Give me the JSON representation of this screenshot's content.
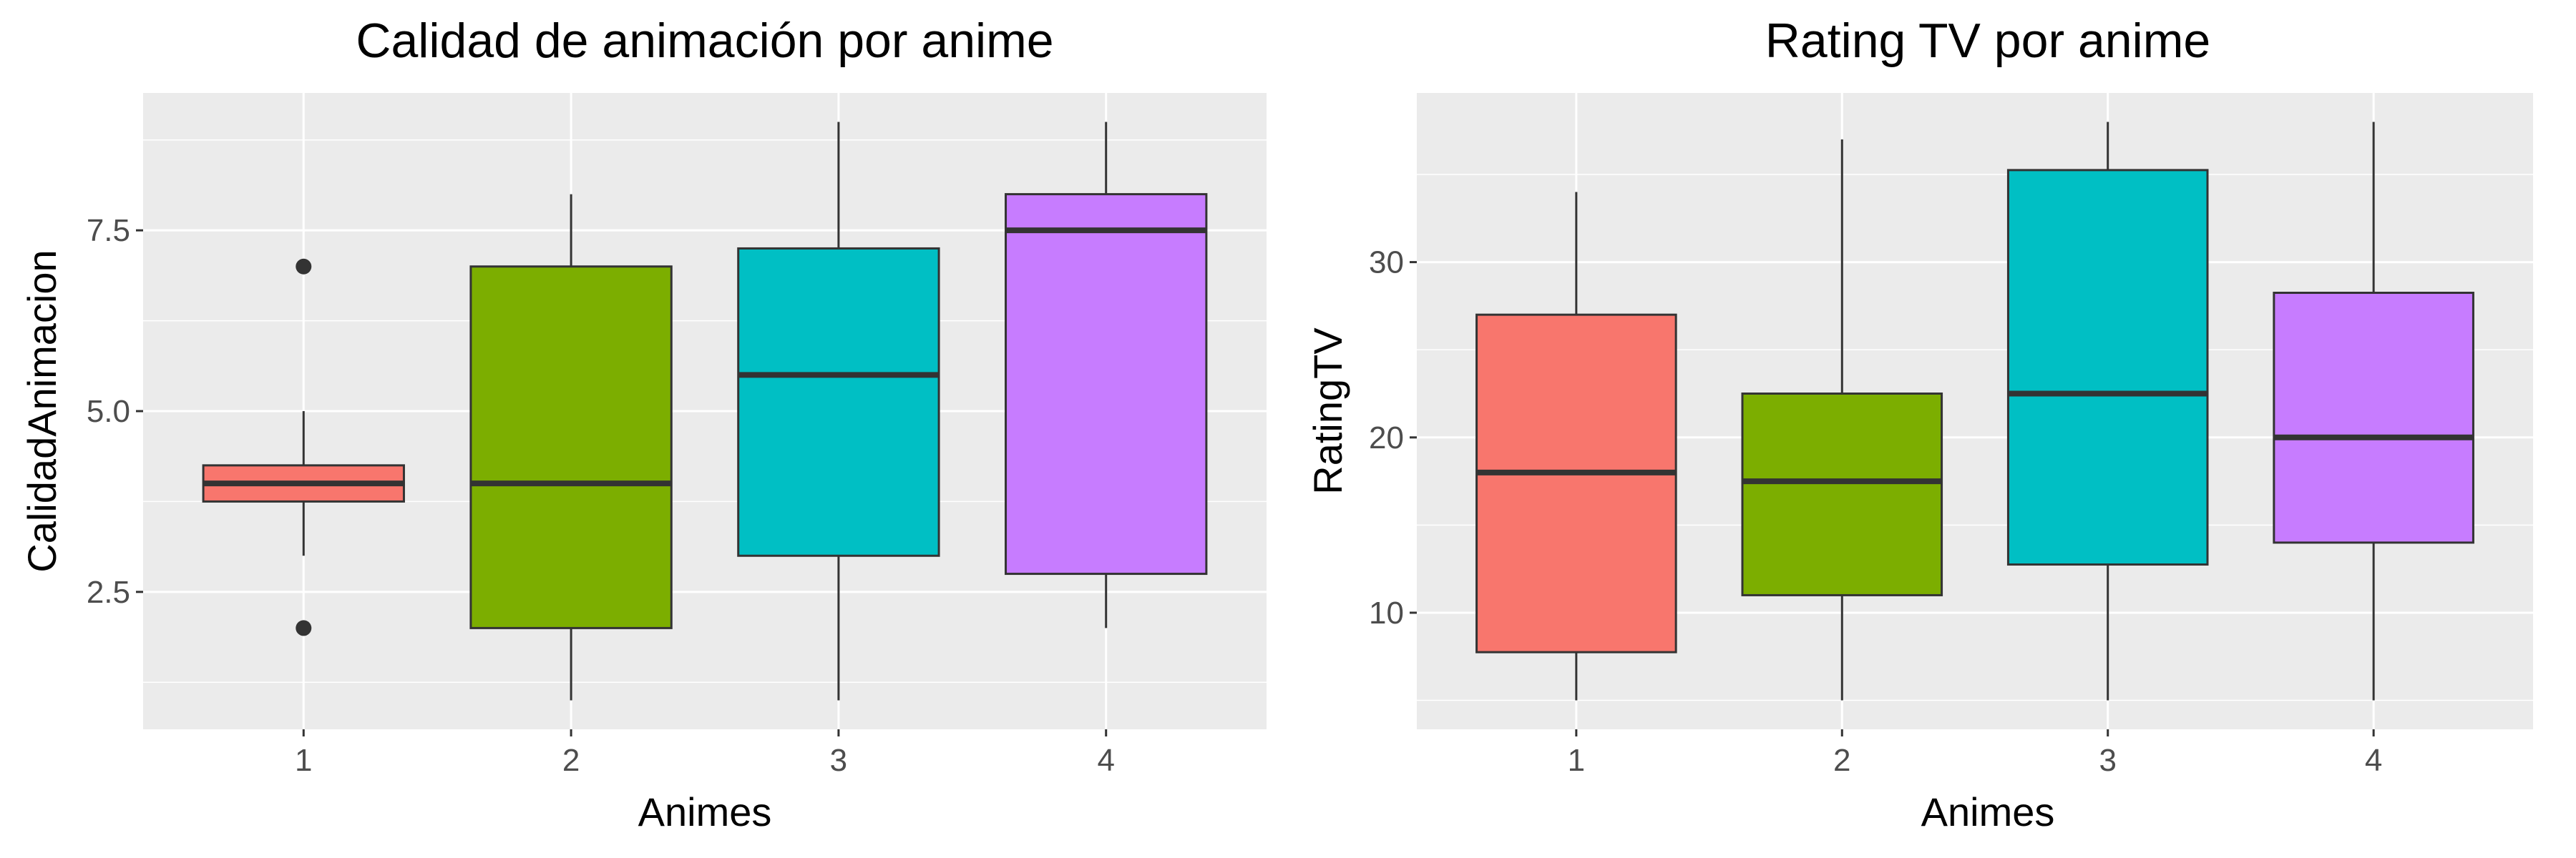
{
  "chart_data": [
    {
      "type": "boxplot",
      "title": "Calidad de animación por anime",
      "xlabel": "Animes",
      "ylabel": "CalidadAnimacion",
      "categories": [
        "1",
        "2",
        "3",
        "4"
      ],
      "ylim": [
        0.6,
        9.4
      ],
      "yticks": [
        2.5,
        5.0,
        7.5
      ],
      "ytick_labels": [
        "2.5",
        "5.0",
        "7.5"
      ],
      "grid": true,
      "legend": "none",
      "boxes": [
        {
          "category": "1",
          "whisker_low": 3,
          "q1": 3.75,
          "median": 4,
          "q3": 4.25,
          "whisker_high": 5,
          "outliers": [
            2,
            7
          ],
          "color": "#F8766D"
        },
        {
          "category": "2",
          "whisker_low": 1,
          "q1": 2,
          "median": 4,
          "q3": 7,
          "whisker_high": 8,
          "outliers": [],
          "color": "#7CAE00"
        },
        {
          "category": "3",
          "whisker_low": 1,
          "q1": 3,
          "median": 5.5,
          "q3": 7.25,
          "whisker_high": 9,
          "outliers": [],
          "color": "#00BFC4"
        },
        {
          "category": "4",
          "whisker_low": 2,
          "q1": 2.75,
          "median": 7.5,
          "q3": 8,
          "whisker_high": 9,
          "outliers": [],
          "color": "#C77CFF"
        }
      ]
    },
    {
      "type": "boxplot",
      "title": "Rating TV por anime",
      "xlabel": "Animes",
      "ylabel": "RatingTV",
      "categories": [
        "1",
        "2",
        "3",
        "4"
      ],
      "ylim": [
        3.35,
        39.65
      ],
      "yticks": [
        10,
        20,
        30
      ],
      "ytick_labels": [
        "10",
        "20",
        "30"
      ],
      "grid": true,
      "legend": "none",
      "boxes": [
        {
          "category": "1",
          "whisker_low": 5,
          "q1": 7.75,
          "median": 18,
          "q3": 27,
          "whisker_high": 34,
          "outliers": [],
          "color": "#F8766D"
        },
        {
          "category": "2",
          "whisker_low": 5,
          "q1": 11,
          "median": 17.5,
          "q3": 22.5,
          "whisker_high": 37,
          "outliers": [],
          "color": "#7CAE00"
        },
        {
          "category": "3",
          "whisker_low": 5,
          "q1": 12.75,
          "median": 22.5,
          "q3": 35.25,
          "whisker_high": 38,
          "outliers": [],
          "color": "#00BFC4"
        },
        {
          "category": "4",
          "whisker_low": 5,
          "q1": 14,
          "median": 20,
          "q3": 28.25,
          "whisker_high": 38,
          "outliers": [],
          "color": "#C77CFF"
        }
      ]
    }
  ],
  "colors": {
    "panel_background": "#EBEBEB",
    "grid": "#FFFFFF",
    "box_outline": "#333333",
    "tick_mark": "#333333"
  }
}
